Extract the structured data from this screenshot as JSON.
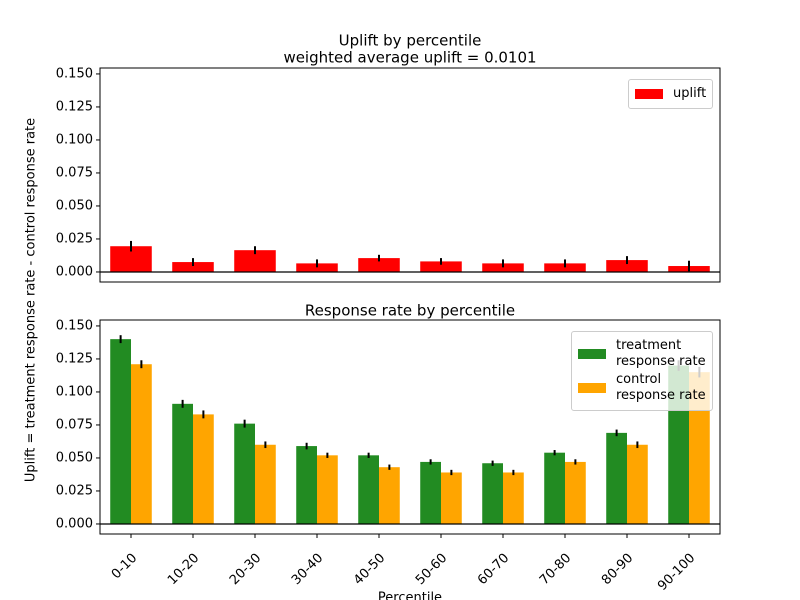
{
  "chart_data": [
    {
      "type": "bar",
      "title": "Uplift by percentile",
      "subtitle": "weighted average uplift = 0.0101",
      "y_label": "Uplift = treatment response rate - control response rate",
      "categories": [
        "0-10",
        "10-20",
        "20-30",
        "30-40",
        "40-50",
        "50-60",
        "60-70",
        "70-80",
        "80-90",
        "90-100"
      ],
      "series": [
        {
          "name": "uplift",
          "color": "#ff0000",
          "values": [
            0.0195,
            0.0075,
            0.0165,
            0.0065,
            0.0105,
            0.008,
            0.0065,
            0.0065,
            0.009,
            0.0045
          ],
          "errors": [
            0.004,
            0.003,
            0.003,
            0.003,
            0.0025,
            0.0025,
            0.003,
            0.003,
            0.003,
            0.004
          ]
        }
      ],
      "ylim": [
        -0.0076,
        0.1545
      ],
      "yticks": [
        {
          "value": 0,
          "label": "0.000"
        },
        {
          "value": 0.025,
          "label": "0.025"
        },
        {
          "value": 0.05,
          "label": "0.050"
        },
        {
          "value": 0.075,
          "label": "0.075"
        },
        {
          "value": 0.1,
          "label": "0.100"
        },
        {
          "value": 0.125,
          "label": "0.125"
        },
        {
          "value": 0.15,
          "label": "0.150"
        }
      ],
      "legend": "upper right",
      "grid": false
    },
    {
      "type": "bar",
      "title": "Response rate by percentile",
      "x_label": "Percentile",
      "categories": [
        "0-10",
        "10-20",
        "20-30",
        "30-40",
        "40-50",
        "50-60",
        "60-70",
        "70-80",
        "80-90",
        "90-100"
      ],
      "series": [
        {
          "name": "treatment\nresponse rate",
          "color": "#228b22",
          "values": [
            0.14,
            0.091,
            0.076,
            0.059,
            0.052,
            0.047,
            0.046,
            0.054,
            0.069,
            0.12
          ],
          "errors": [
            0.003,
            0.003,
            0.003,
            0.0025,
            0.002,
            0.002,
            0.002,
            0.002,
            0.0025,
            0.004
          ]
        },
        {
          "name": "control\nresponse rate",
          "color": "#ffa500",
          "values": [
            0.121,
            0.083,
            0.06,
            0.052,
            0.043,
            0.039,
            0.039,
            0.047,
            0.06,
            0.115
          ],
          "errors": [
            0.003,
            0.003,
            0.0025,
            0.002,
            0.002,
            0.002,
            0.002,
            0.002,
            0.0025,
            0.004
          ]
        }
      ],
      "ylim": [
        -0.0076,
        0.1545
      ],
      "yticks": [
        {
          "value": 0,
          "label": "0.000"
        },
        {
          "value": 0.025,
          "label": "0.025"
        },
        {
          "value": 0.05,
          "label": "0.050"
        },
        {
          "value": 0.075,
          "label": "0.075"
        },
        {
          "value": 0.1,
          "label": "0.100"
        },
        {
          "value": 0.125,
          "label": "0.125"
        },
        {
          "value": 0.15,
          "label": "0.150"
        }
      ],
      "legend": "upper right",
      "grid": false
    }
  ]
}
